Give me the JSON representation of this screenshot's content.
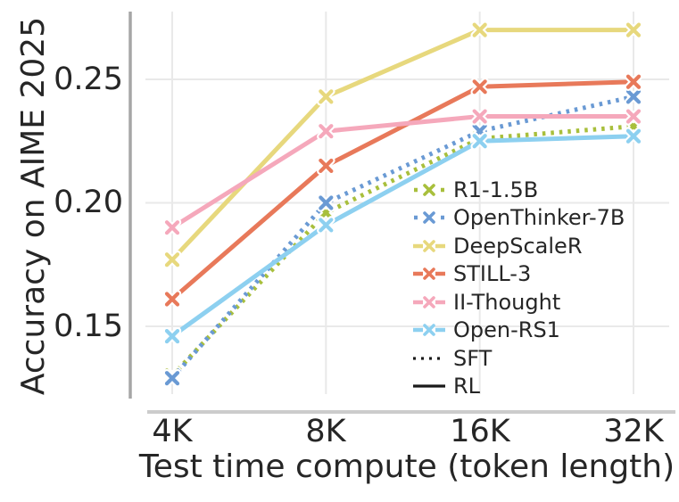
{
  "figure": {
    "background": "#ffffff"
  },
  "chart_data": {
    "type": "line",
    "title": "",
    "xlabel": "Test time compute (token length)",
    "ylabel": "Accuracy on AIME 2025",
    "x_scale": "log2",
    "categories": [
      "4K",
      "8K",
      "16K",
      "32K"
    ],
    "ytick_labels": [
      "0.15",
      "0.20",
      "0.25"
    ],
    "yticks": [
      0.15,
      0.2,
      0.25
    ],
    "ylim": [
      0.116,
      0.277
    ],
    "grid": true,
    "marker": "x",
    "series": [
      {
        "name": "R1-1.5B",
        "color": "#a8bf3c",
        "line_style": "dotted",
        "training": "SFT",
        "values": [
          0.13,
          0.196,
          0.226,
          0.231
        ]
      },
      {
        "name": "OpenThinker-7B",
        "color": "#6a9ad4",
        "line_style": "dotted",
        "training": "SFT",
        "values": [
          0.129,
          0.2,
          0.229,
          0.243
        ]
      },
      {
        "name": "DeepScaleR",
        "color": "#e7d87d",
        "line_style": "solid",
        "training": "RL",
        "values": [
          0.177,
          0.243,
          0.27,
          0.27
        ]
      },
      {
        "name": "STILL-3",
        "color": "#e8795a",
        "line_style": "solid",
        "training": "RL",
        "values": [
          0.161,
          0.215,
          0.247,
          0.249
        ]
      },
      {
        "name": "II-Thought",
        "color": "#f5a8bb",
        "line_style": "solid",
        "training": "RL",
        "values": [
          0.19,
          0.229,
          0.235,
          0.235
        ]
      },
      {
        "name": "Open-RS1",
        "color": "#8dd0f0",
        "line_style": "solid",
        "training": "RL",
        "values": [
          0.146,
          0.191,
          0.225,
          0.227
        ]
      }
    ],
    "legend": {
      "position": "center-right-inside",
      "style_entries": [
        {
          "name": "SFT",
          "line_style": "dotted",
          "color": "#1a1a1a"
        },
        {
          "name": "RL",
          "line_style": "solid",
          "color": "#1a1a1a"
        }
      ]
    },
    "colors": {
      "grid": "#e9e9e9",
      "left_spine": "#a6a6a6",
      "bottom_spine": "#cccccc",
      "text": "#262626",
      "marker_halo": "#ffffff"
    }
  }
}
